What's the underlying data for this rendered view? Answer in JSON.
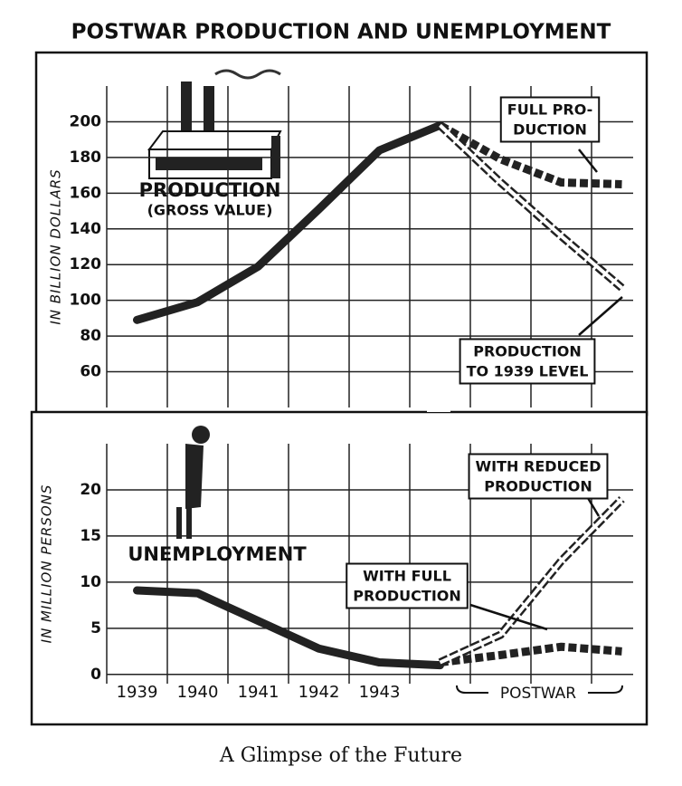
{
  "title": "POSTWAR PRODUCTION AND UNEMPLOYMENT",
  "caption": "A Glimpse of the Future",
  "chart_data": [
    {
      "type": "line",
      "ylabel": "IN BILLION DOLLARS",
      "categories": [
        null,
        null,
        null,
        null,
        null,
        null,
        null,
        null,
        null
      ],
      "ylim": [
        40,
        220
      ],
      "yticks": [
        60,
        80,
        100,
        120,
        140,
        160,
        180,
        200
      ],
      "grid": true,
      "series": [
        {
          "color": "#222222",
          "style": "solid",
          "values": [
            89,
            99,
            119,
            151,
            184,
            198,
            null,
            null,
            null
          ]
        },
        {
          "color": "#222222",
          "style": "dashed",
          "values": [
            null,
            null,
            null,
            null,
            null,
            198,
            179,
            166,
            165
          ]
        },
        {
          "color": "#222222",
          "style": "hollow",
          "values": [
            null,
            null,
            null,
            null,
            null,
            198,
            166,
            136,
            107
          ]
        }
      ],
      "annotations": [
        {
          "lines": [
            "PRODUCTION",
            "(GROSS VALUE)"
          ]
        },
        {
          "lines": [
            "FULL PRO-",
            "DUCTION"
          ]
        },
        {
          "lines": [
            "PRODUCTION",
            "TO 1939 LEVEL"
          ]
        }
      ]
    },
    {
      "type": "line",
      "ylabel": "IN MILLION PERSONS",
      "categories": [
        "1939",
        "1940",
        "1941",
        "1942",
        "1943",
        null,
        null,
        null,
        null
      ],
      "x_group_label": "POSTWAR",
      "ylim": [
        -1,
        25
      ],
      "yticks": [
        0,
        5,
        10,
        15,
        20
      ],
      "grid": true,
      "series": [
        {
          "color": "#222222",
          "style": "solid",
          "values": [
            9.1,
            8.8,
            5.8,
            2.8,
            1.3,
            1.0,
            null,
            null,
            null
          ]
        },
        {
          "color": "#222222",
          "style": "dashed",
          "values": [
            null,
            null,
            null,
            null,
            null,
            1.3,
            2.1,
            3.0,
            2.5
          ]
        },
        {
          "color": "#222222",
          "style": "hollow",
          "values": [
            null,
            null,
            null,
            null,
            null,
            1.3,
            4.3,
            12.3,
            19
          ]
        }
      ],
      "annotations": [
        {
          "lines": [
            "UNEMPLOYMENT"
          ]
        },
        {
          "lines": [
            "WITH FULL",
            "PRODUCTION"
          ]
        },
        {
          "lines": [
            "WITH REDUCED",
            "PRODUCTION"
          ]
        }
      ]
    }
  ]
}
